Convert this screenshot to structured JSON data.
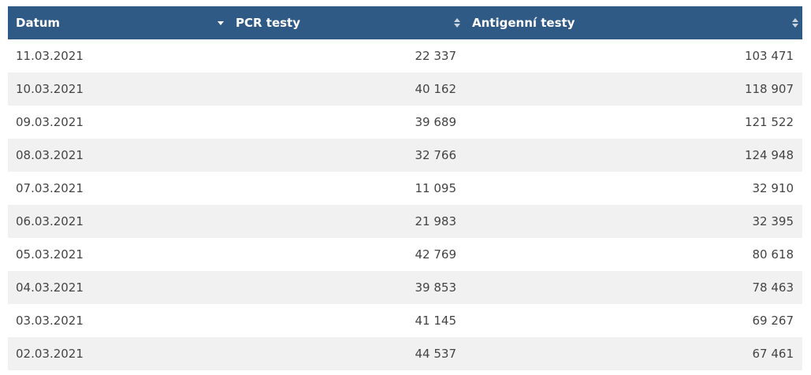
{
  "table": {
    "headers": [
      {
        "label": "Datum",
        "sort_state": "descending"
      },
      {
        "label": "PCR testy",
        "sort_state": "unsorted"
      },
      {
        "label": "Antigenní testy",
        "sort_state": "unsorted"
      }
    ],
    "rows": [
      {
        "date": "11.03.2021",
        "pcr": "22 337",
        "antigen": "103 471"
      },
      {
        "date": "10.03.2021",
        "pcr": "40 162",
        "antigen": "118 907"
      },
      {
        "date": "09.03.2021",
        "pcr": "39 689",
        "antigen": "121 522"
      },
      {
        "date": "08.03.2021",
        "pcr": "32 766",
        "antigen": "124 948"
      },
      {
        "date": "07.03.2021",
        "pcr": "11 095",
        "antigen": "32 910"
      },
      {
        "date": "06.03.2021",
        "pcr": "21 983",
        "antigen": "32 395"
      },
      {
        "date": "05.03.2021",
        "pcr": "42 769",
        "antigen": "80 618"
      },
      {
        "date": "04.03.2021",
        "pcr": "39 853",
        "antigen": "78 463"
      },
      {
        "date": "03.03.2021",
        "pcr": "41 145",
        "antigen": "69 267"
      },
      {
        "date": "02.03.2021",
        "pcr": "44 537",
        "antigen": "67 461"
      }
    ]
  },
  "colors": {
    "header_bg": "#2e5a85",
    "header_text": "#ffffff",
    "row_alt_bg": "#f1f1f1",
    "row_bg": "#ffffff",
    "cell_text": "#444444"
  },
  "icons": {
    "sort_desc": "sort-desc-icon",
    "sort_both": "sort-both-icon"
  }
}
